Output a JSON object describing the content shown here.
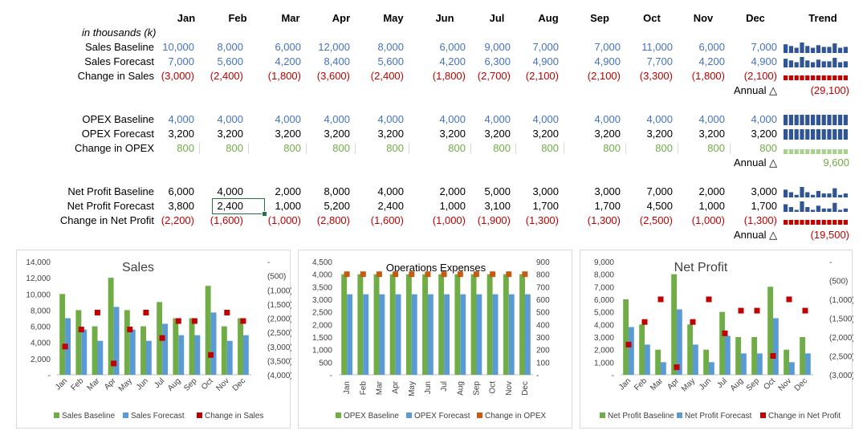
{
  "months": [
    "Jan",
    "Feb",
    "Mar",
    "Apr",
    "May",
    "Jun",
    "Jul",
    "Aug",
    "Sep",
    "Oct",
    "Nov",
    "Dec"
  ],
  "trend_label": "Trend",
  "units_note": "in thousands (k)",
  "annual_label": "Annual △",
  "colors": {
    "baseline_green": "#70AD47",
    "forecast_blue": "#5B9BD5",
    "change_red": "#C00000",
    "opex_change": "#C55A11",
    "spark_blue": "#2F5597",
    "spark_green": "#A9D18E",
    "selection": "#217346"
  },
  "rows": {
    "sales_baseline": {
      "label": "Sales Baseline",
      "display": [
        "10,000",
        "8,000",
        "6,000",
        "12,000",
        "8,000",
        "6,000",
        "9,000",
        "7,000",
        "7,000",
        "11,000",
        "6,000",
        "7,000"
      ],
      "values": [
        10000,
        8000,
        6000,
        12000,
        8000,
        6000,
        9000,
        7000,
        7000,
        11000,
        6000,
        7000
      ]
    },
    "sales_forecast": {
      "label": "Sales Forecast",
      "display": [
        "7,000",
        "5,600",
        "4,200",
        "8,400",
        "5,600",
        "4,200",
        "6,300",
        "4,900",
        "4,900",
        "7,700",
        "4,200",
        "4,900"
      ],
      "values": [
        7000,
        5600,
        4200,
        8400,
        5600,
        4200,
        6300,
        4900,
        4900,
        7700,
        4200,
        4900
      ]
    },
    "sales_change": {
      "label": "Change in Sales",
      "display": [
        "(3,000)",
        "(2,400)",
        "(1,800)",
        "(3,600)",
        "(2,400)",
        "(1,800)",
        "(2,700)",
        "(2,100)",
        "(2,100)",
        "(3,300)",
        "(1,800)",
        "(2,100)"
      ],
      "values": [
        -3000,
        -2400,
        -1800,
        -3600,
        -2400,
        -1800,
        -2700,
        -2100,
        -2100,
        -3300,
        -1800,
        -2100
      ],
      "annual": "(29,100)"
    },
    "opex_baseline": {
      "label": "OPEX Baseline",
      "display": [
        "4,000",
        "4,000",
        "4,000",
        "4,000",
        "4,000",
        "4,000",
        "4,000",
        "4,000",
        "4,000",
        "4,000",
        "4,000",
        "4,000"
      ],
      "values": [
        4000,
        4000,
        4000,
        4000,
        4000,
        4000,
        4000,
        4000,
        4000,
        4000,
        4000,
        4000
      ]
    },
    "opex_forecast": {
      "label": "OPEX Forecast",
      "display": [
        "3,200",
        "3,200",
        "3,200",
        "3,200",
        "3,200",
        "3,200",
        "3,200",
        "3,200",
        "3,200",
        "3,200",
        "3,200",
        "3,200"
      ],
      "values": [
        3200,
        3200,
        3200,
        3200,
        3200,
        3200,
        3200,
        3200,
        3200,
        3200,
        3200,
        3200
      ]
    },
    "opex_change": {
      "label": "Change in OPEX",
      "display": [
        "800",
        "800",
        "800",
        "800",
        "800",
        "800",
        "800",
        "800",
        "800",
        "800",
        "800",
        "800"
      ],
      "values": [
        800,
        800,
        800,
        800,
        800,
        800,
        800,
        800,
        800,
        800,
        800,
        800
      ],
      "annual": "9,600"
    },
    "np_baseline": {
      "label": "Net Profit Baseline",
      "display": [
        "6,000",
        "4,000",
        "2,000",
        "8,000",
        "4,000",
        "2,000",
        "5,000",
        "3,000",
        "3,000",
        "7,000",
        "2,000",
        "3,000"
      ],
      "values": [
        6000,
        4000,
        2000,
        8000,
        4000,
        2000,
        5000,
        3000,
        3000,
        7000,
        2000,
        3000
      ]
    },
    "np_forecast": {
      "label": "Net Profit Forecast",
      "display": [
        "3,800",
        "2,400",
        "1,000",
        "5,200",
        "2,400",
        "1,000",
        "3,100",
        "1,700",
        "1,700",
        "4,500",
        "1,000",
        "1,700"
      ],
      "values": [
        3800,
        2400,
        1000,
        5200,
        2400,
        1000,
        3100,
        1700,
        1700,
        4500,
        1000,
        1700
      ]
    },
    "np_change": {
      "label": "Change in Net Profit",
      "display": [
        "(2,200)",
        "(1,600)",
        "(1,000)",
        "(2,800)",
        "(1,600)",
        "(1,000)",
        "(1,900)",
        "(1,300)",
        "(1,300)",
        "(2,500)",
        "(1,000)",
        "(1,300)"
      ],
      "values": [
        -2200,
        -1600,
        -1000,
        -2800,
        -1600,
        -1000,
        -1900,
        -1300,
        -1300,
        -2500,
        -1000,
        -1300
      ],
      "annual": "(19,500)"
    }
  },
  "chart_data": [
    {
      "type": "bar",
      "title": "Sales",
      "categories": [
        "Jan",
        "Feb",
        "Mar",
        "Apr",
        "May",
        "Jun",
        "Jul",
        "Aug",
        "Sep",
        "Oct",
        "Nov",
        "Dec"
      ],
      "series": [
        {
          "name": "Sales Baseline",
          "values": [
            10000,
            8000,
            6000,
            12000,
            8000,
            6000,
            9000,
            7000,
            7000,
            11000,
            6000,
            7000
          ],
          "axis": "left",
          "kind": "bar"
        },
        {
          "name": "Sales Forecast",
          "values": [
            7000,
            5600,
            4200,
            8400,
            5600,
            4200,
            6300,
            4900,
            4900,
            7700,
            4200,
            4900
          ],
          "axis": "left",
          "kind": "bar"
        },
        {
          "name": "Change in Sales",
          "values": [
            -3000,
            -2400,
            -1800,
            -3600,
            -2400,
            -1800,
            -2700,
            -2100,
            -2100,
            -3300,
            -1800,
            -2100
          ],
          "axis": "right",
          "kind": "marker"
        }
      ],
      "ylim": [
        0,
        14000
      ],
      "yticks": [
        "14,000",
        "12,000",
        "10,000",
        "8,000",
        "6,000",
        "4,000",
        "2,000",
        "-"
      ],
      "y2lim": [
        -4000,
        0
      ],
      "y2ticks": [
        "-",
        "(500)",
        "(1,000)",
        "(1,500)",
        "(2,000)",
        "(2,500)",
        "(3,000)",
        "(3,500)",
        "(4,000)"
      ],
      "legend": "bottom"
    },
    {
      "type": "bar",
      "title": "Operations Expenses",
      "categories": [
        "Jan",
        "Feb",
        "Mar",
        "Apr",
        "May",
        "Jun",
        "Jul",
        "Aug",
        "Sep",
        "Oct",
        "Nov",
        "Dec"
      ],
      "series": [
        {
          "name": "OPEX Baseline",
          "values": [
            4000,
            4000,
            4000,
            4000,
            4000,
            4000,
            4000,
            4000,
            4000,
            4000,
            4000,
            4000
          ],
          "axis": "left",
          "kind": "bar"
        },
        {
          "name": "OPEX Forecast",
          "values": [
            3200,
            3200,
            3200,
            3200,
            3200,
            3200,
            3200,
            3200,
            3200,
            3200,
            3200,
            3200
          ],
          "axis": "left",
          "kind": "bar"
        },
        {
          "name": "Change in OPEX",
          "values": [
            800,
            800,
            800,
            800,
            800,
            800,
            800,
            800,
            800,
            800,
            800,
            800
          ],
          "axis": "right",
          "kind": "marker"
        }
      ],
      "ylim": [
        0,
        4500
      ],
      "yticks": [
        "4,500",
        "4,000",
        "3,500",
        "3,000",
        "2,500",
        "2,000",
        "1,500",
        "1,000",
        "500",
        "-"
      ],
      "y2lim": [
        0,
        900
      ],
      "y2ticks": [
        "900",
        "800",
        "700",
        "600",
        "500",
        "400",
        "300",
        "200",
        "100",
        "-"
      ],
      "legend": "bottom"
    },
    {
      "type": "bar",
      "title": "Net Profit",
      "categories": [
        "Jan",
        "Feb",
        "Mar",
        "Apr",
        "May",
        "Jun",
        "Jul",
        "Aug",
        "Sep",
        "Oct",
        "Nov",
        "Dec"
      ],
      "series": [
        {
          "name": "Net Profit Baseline",
          "values": [
            6000,
            4000,
            2000,
            8000,
            4000,
            2000,
            5000,
            3000,
            3000,
            7000,
            2000,
            3000
          ],
          "axis": "left",
          "kind": "bar"
        },
        {
          "name": "Net Profit Forecast",
          "values": [
            3800,
            2400,
            1000,
            5200,
            2400,
            1000,
            3100,
            1700,
            1700,
            4500,
            1000,
            1700
          ],
          "axis": "left",
          "kind": "bar"
        },
        {
          "name": "Change in Net Profit",
          "values": [
            -2200,
            -1600,
            -1000,
            -2800,
            -1600,
            -1000,
            -1900,
            -1300,
            -1300,
            -2500,
            -1000,
            -1300
          ],
          "axis": "right",
          "kind": "marker"
        }
      ],
      "ylim": [
        0,
        9000
      ],
      "yticks": [
        "9,000",
        "8,000",
        "7,000",
        "6,000",
        "5,000",
        "4,000",
        "3,000",
        "2,000",
        "1,000",
        "-"
      ],
      "y2lim": [
        -3000,
        0
      ],
      "y2ticks": [
        "-",
        "(500)",
        "(1,000)",
        "(1,500)",
        "(2,000)",
        "(2,500)",
        "(3,000)"
      ],
      "legend": "bottom"
    }
  ]
}
